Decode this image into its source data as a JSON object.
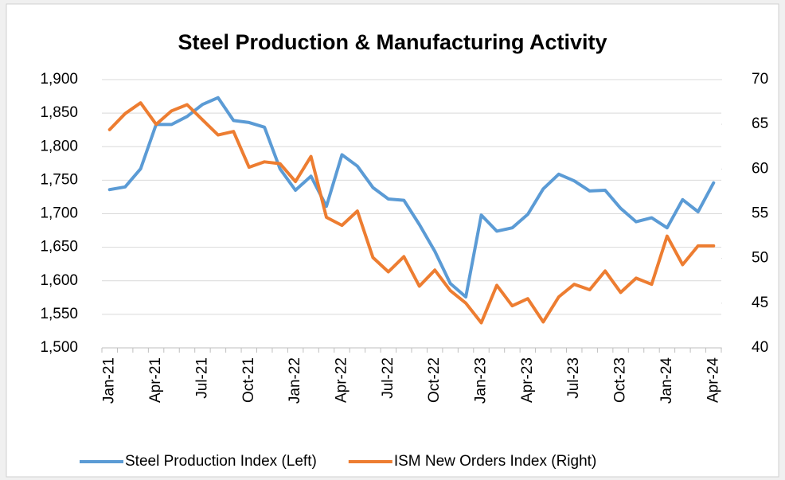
{
  "chart_data": {
    "type": "line",
    "title": "Steel Production & Manufacturing Activity",
    "categories": [
      "Jan-21",
      null,
      null,
      "Apr-21",
      null,
      null,
      "Jul-21",
      null,
      null,
      "Oct-21",
      null,
      null,
      "Jan-22",
      null,
      null,
      "Apr-22",
      null,
      null,
      "Jul-22",
      null,
      null,
      "Oct-22",
      null,
      null,
      "Jan-23",
      null,
      null,
      "Apr-23",
      null,
      null,
      "Jul-23",
      null,
      null,
      "Oct-23",
      null,
      null,
      "Jan-24",
      null,
      null,
      "Apr-24"
    ],
    "series": [
      {
        "name": "Steel Production Index (Left)",
        "color": "#5b9bd5",
        "axis": "y",
        "values": [
          1736,
          1740,
          1767,
          1833,
          1833,
          1845,
          1863,
          1873,
          1839,
          1836,
          1829,
          1767,
          1735,
          1756,
          1711,
          1788,
          1771,
          1739,
          1722,
          1720,
          1684,
          1644,
          1596,
          1576,
          1698,
          1674,
          1679,
          1699,
          1737,
          1759,
          1749,
          1734,
          1735,
          1708,
          1688,
          1694,
          1679,
          1721,
          1703,
          1746
        ]
      },
      {
        "name": "ISM New Orders Index (Right)",
        "color": "#ed7d31",
        "axis": "y2",
        "values": [
          64.4,
          66.2,
          67.4,
          65.0,
          66.5,
          67.2,
          65.5,
          63.8,
          64.2,
          60.2,
          60.8,
          60.6,
          58.6,
          61.4,
          54.6,
          53.7,
          55.3,
          50.1,
          48.5,
          50.2,
          46.9,
          48.7,
          46.4,
          45.0,
          42.8,
          47.0,
          44.7,
          45.5,
          42.9,
          45.7,
          47.1,
          46.5,
          48.6,
          46.2,
          47.8,
          47.1,
          52.5,
          49.3,
          51.4,
          51.4
        ]
      }
    ],
    "ylim": [
      1500,
      1900
    ],
    "yticks": [
      {
        "value": 1500,
        "label": "1,500"
      },
      {
        "value": 1550,
        "label": "1,550"
      },
      {
        "value": 1600,
        "label": "1,600"
      },
      {
        "value": 1650,
        "label": "1,650"
      },
      {
        "value": 1700,
        "label": "1,700"
      },
      {
        "value": 1750,
        "label": "1,750"
      },
      {
        "value": 1800,
        "label": "1,800"
      },
      {
        "value": 1850,
        "label": "1,850"
      },
      {
        "value": 1900,
        "label": "1,900"
      }
    ],
    "y2lim": [
      40,
      70
    ],
    "y2ticks": [
      40,
      45,
      50,
      55,
      60,
      65,
      70
    ],
    "grid": true,
    "legend": "bottom"
  }
}
